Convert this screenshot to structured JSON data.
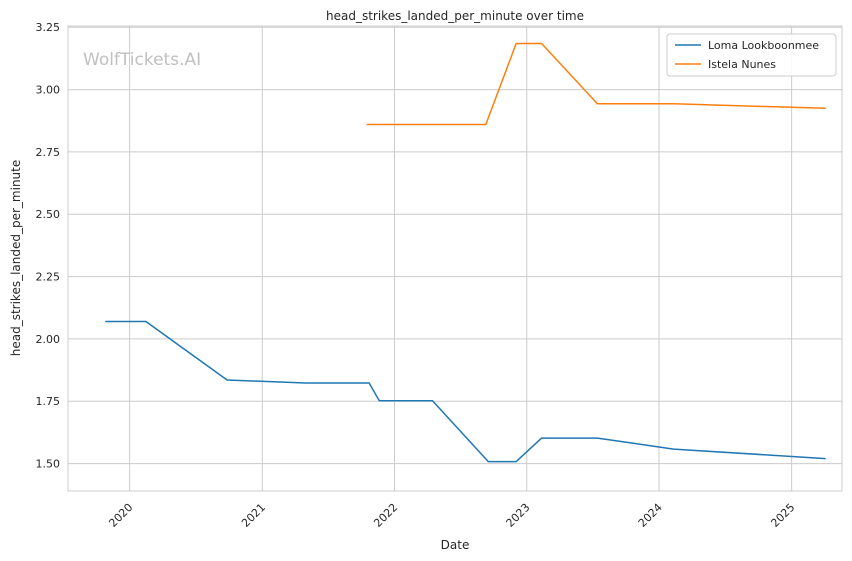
{
  "chart_data": {
    "type": "line",
    "title": "head_strikes_landed_per_minute over time",
    "xlabel": "Date",
    "ylabel": "head_strikes_landed_per_minute",
    "watermark": "WolfTickets.AI",
    "xlim": [
      "2019-07-15",
      "2025-05-20"
    ],
    "ylim": [
      1.39,
      3.255
    ],
    "yticks": [
      1.5,
      1.75,
      2.0,
      2.25,
      2.5,
      2.75,
      3.0,
      3.25
    ],
    "ytick_labels": [
      "1.50",
      "1.75",
      "2.00",
      "2.25",
      "2.50",
      "2.75",
      "3.00",
      "3.25"
    ],
    "xticks": [
      "2020-01-01",
      "2021-01-01",
      "2022-01-01",
      "2023-01-01",
      "2024-01-01",
      "2025-01-01"
    ],
    "xtick_labels": [
      "2020",
      "2021",
      "2022",
      "2023",
      "2024",
      "2025"
    ],
    "grid": true,
    "legend_position": "top-right",
    "series": [
      {
        "name": "Loma Lookboonmee",
        "color": "#1f77b4",
        "points": [
          {
            "x": "2019-10-26",
            "y": 2.07
          },
          {
            "x": "2020-02-15",
            "y": 2.07
          },
          {
            "x": "2020-09-26",
            "y": 1.835
          },
          {
            "x": "2021-05-01",
            "y": 1.823
          },
          {
            "x": "2021-10-23",
            "y": 1.823
          },
          {
            "x": "2021-11-20",
            "y": 1.752
          },
          {
            "x": "2022-04-16",
            "y": 1.752
          },
          {
            "x": "2022-09-17",
            "y": 1.508
          },
          {
            "x": "2022-12-03",
            "y": 1.508
          },
          {
            "x": "2023-02-11",
            "y": 1.602
          },
          {
            "x": "2023-07-15",
            "y": 1.602
          },
          {
            "x": "2024-02-10",
            "y": 1.558
          },
          {
            "x": "2025-04-05",
            "y": 1.52
          }
        ]
      },
      {
        "name": "Istela Nunes",
        "color": "#ff7f0e",
        "points": [
          {
            "x": "2021-10-16",
            "y": 2.86
          },
          {
            "x": "2022-09-10",
            "y": 2.86
          },
          {
            "x": "2022-12-03",
            "y": 3.185
          },
          {
            "x": "2023-02-11",
            "y": 3.185
          },
          {
            "x": "2023-07-15",
            "y": 2.943
          },
          {
            "x": "2024-02-10",
            "y": 2.943
          },
          {
            "x": "2025-04-05",
            "y": 2.925
          }
        ]
      }
    ]
  }
}
